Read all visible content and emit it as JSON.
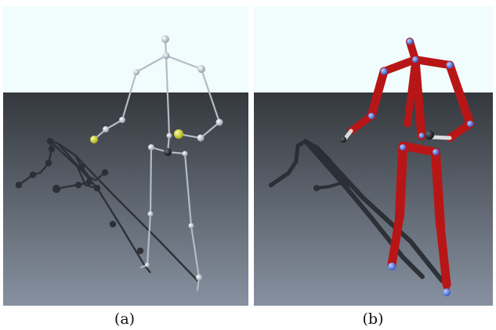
{
  "figure": {
    "panels": [
      {
        "id": "a",
        "caption": "(a)",
        "description": "skeleton"
      },
      {
        "id": "b",
        "caption": "(b)",
        "description": "skinned-model"
      }
    ]
  },
  "colors": {
    "sky": "#f1fcfd",
    "floor_top": "#34383d",
    "floor_bottom": "#8791a0",
    "bone_light": "#b8c0cc",
    "joint_light": "#c8d0dc",
    "joint_yellow": "#d6d82a",
    "joint_dark": "#1c1e22",
    "limb_red": "#c01818",
    "joint_blue": "#4a78e8",
    "shadow": "#2a2d33"
  }
}
